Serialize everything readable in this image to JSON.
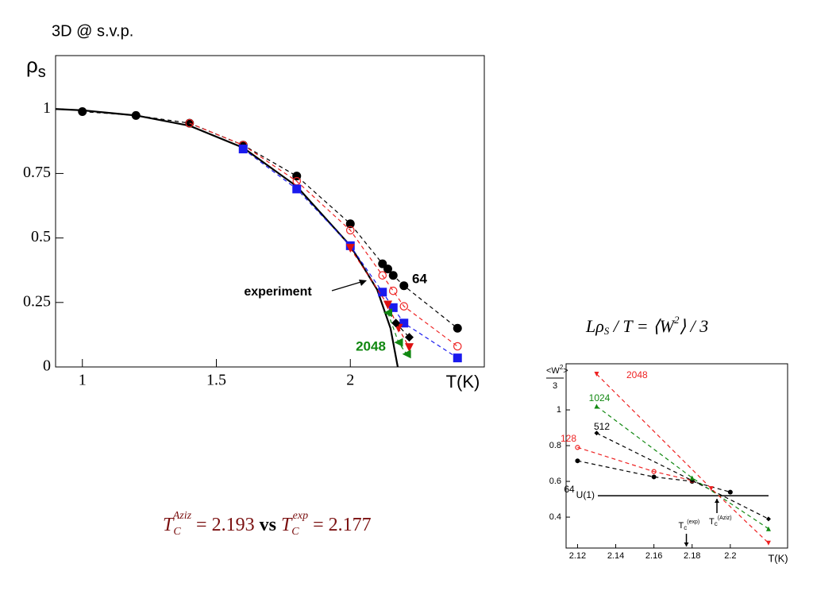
{
  "title": "3D @ s.v.p.",
  "formula_top": [
    "Lρ",
    "S",
    " / T = ⟨W",
    "2",
    "⟩ / 3"
  ],
  "formula_bottom": [
    "T",
    "C",
    "Aziz",
    " = 2.193 ",
    "vs",
    " T",
    "C",
    "exp",
    " = 2.177"
  ],
  "chart_data": [
    {
      "type": "line",
      "x_label": "T(K)",
      "y_label": {
        "main": "ρ",
        "sub": "s"
      },
      "xlim": [
        0.9,
        2.5
      ],
      "ylim": [
        0,
        1.207
      ],
      "xticks": [
        1,
        1.5,
        2
      ],
      "yticks": [
        0,
        0.25,
        0.5,
        0.75,
        1
      ],
      "series": [
        {
          "name": "experiment",
          "color": "#000000",
          "line": "solid",
          "marker": "none",
          "x": [
            0.9,
            1.0,
            1.2,
            1.4,
            1.6,
            1.8,
            2.0,
            2.1,
            2.15,
            2.177
          ],
          "values": [
            1.0,
            0.995,
            0.975,
            0.935,
            0.85,
            0.7,
            0.47,
            0.3,
            0.15,
            0
          ]
        },
        {
          "name": "64",
          "color": "#000000",
          "line": "dashed",
          "marker": "circle",
          "x": [
            1.0,
            1.2,
            1.4,
            1.6,
            1.8,
            2.0,
            2.12,
            2.14,
            2.16,
            2.2,
            2.4
          ],
          "values": [
            0.99,
            0.975,
            0.945,
            0.86,
            0.74,
            0.555,
            0.4,
            0.38,
            0.355,
            0.315,
            0.15
          ]
        },
        {
          "color": "#ee2222",
          "line": "dashed",
          "marker": "open-circle",
          "x": [
            1.4,
            1.6,
            1.8,
            2.0,
            2.12,
            2.16,
            2.2,
            2.4
          ],
          "values": [
            0.945,
            0.86,
            0.72,
            0.53,
            0.355,
            0.295,
            0.235,
            0.08
          ]
        },
        {
          "color": "#1a1aee",
          "line": "dashed",
          "marker": "square",
          "x": [
            1.6,
            1.8,
            2.0,
            2.12,
            2.16,
            2.2,
            2.4
          ],
          "values": [
            0.845,
            0.69,
            0.47,
            0.29,
            0.23,
            0.17,
            0.035
          ]
        },
        {
          "color": "#dd1111",
          "line": "dashed",
          "marker": "triangle-down",
          "x": [
            2.0,
            2.14,
            2.18,
            2.22
          ],
          "values": [
            0.46,
            0.24,
            0.15,
            0.075
          ]
        },
        {
          "color": "#000000",
          "line": "dashed",
          "marker": "diamond",
          "x": [
            2.17,
            2.22
          ],
          "values": [
            0.17,
            0.115
          ]
        },
        {
          "name": "2048",
          "color": "#118811",
          "line": "dashed",
          "marker": "triangle-left",
          "x": [
            2.14,
            2.18,
            2.21
          ],
          "values": [
            0.21,
            0.095,
            0.05
          ]
        }
      ]
    },
    {
      "type": "line",
      "x_label": "T(K)",
      "y_label": {
        "main": "<W",
        "sup": "2",
        "end": ">",
        "denominator": "3"
      },
      "xlim": [
        2.114,
        2.23
      ],
      "ylim": [
        0.227,
        1.258
      ],
      "xticks": [
        2.12,
        2.14,
        2.16,
        2.18,
        2.2
      ],
      "yticks": [
        0.4,
        0.6,
        0.8,
        1
      ],
      "reference_line": {
        "label": "U(1)",
        "value": 0.52
      },
      "markers": [
        {
          "main": "T",
          "sub": "c",
          "sup": "(exp)",
          "x": 2.177
        },
        {
          "main": "T",
          "sub": "c",
          "sup": "(Aziz)",
          "x": 2.193
        }
      ],
      "series": [
        {
          "name": "64",
          "color": "#000000",
          "line": "dashed",
          "marker": "circle",
          "x": [
            2.12,
            2.16,
            2.18,
            2.2
          ],
          "values": [
            0.715,
            0.625,
            0.6,
            0.54
          ]
        },
        {
          "name": "128",
          "color": "#ee2222",
          "line": "dashed",
          "marker": "open-circle",
          "x": [
            2.12,
            2.16,
            2.18
          ],
          "values": [
            0.79,
            0.655,
            0.605
          ]
        },
        {
          "name": "512",
          "color": "#000000",
          "line": "dashed",
          "marker": "diamond",
          "x": [
            2.13,
            2.18,
            2.22
          ],
          "values": [
            0.87,
            0.605,
            0.39
          ]
        },
        {
          "name": "1024",
          "color": "#118811",
          "line": "dashed",
          "marker": "triangle-up",
          "x": [
            2.13,
            2.18,
            2.22
          ],
          "values": [
            1.02,
            0.62,
            0.335
          ]
        },
        {
          "name": "2048",
          "color": "#ee2222",
          "line": "dashed",
          "marker": "triangle-down",
          "x": [
            2.13,
            2.19,
            2.22
          ],
          "values": [
            1.2,
            0.56,
            0.255
          ]
        }
      ]
    }
  ]
}
